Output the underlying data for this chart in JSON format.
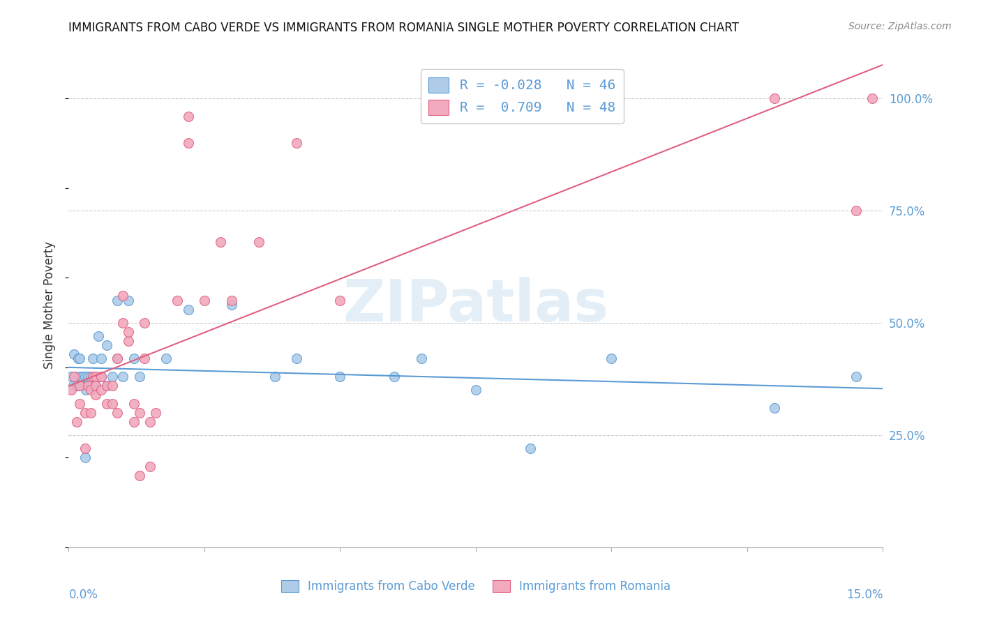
{
  "title": "IMMIGRANTS FROM CABO VERDE VS IMMIGRANTS FROM ROMANIA SINGLE MOTHER POVERTY CORRELATION CHART",
  "source": "Source: ZipAtlas.com",
  "ylabel": "Single Mother Poverty",
  "cabo_verde_color": "#aecce8",
  "romania_color": "#f2aabe",
  "cabo_verde_line_color": "#5b9bd5",
  "romania_line_color": "#e06080",
  "xlim": [
    0.0,
    0.15
  ],
  "ylim": [
    0.0,
    1.08
  ],
  "ytick_vals": [
    0.25,
    0.5,
    0.75,
    1.0
  ],
  "cabo_verde_x": [
    0.0005,
    0.0008,
    0.001,
    0.0012,
    0.0015,
    0.0018,
    0.002,
    0.002,
    0.0022,
    0.0025,
    0.003,
    0.003,
    0.003,
    0.0032,
    0.0035,
    0.004,
    0.004,
    0.0042,
    0.0045,
    0.005,
    0.005,
    0.0055,
    0.006,
    0.006,
    0.007,
    0.007,
    0.008,
    0.009,
    0.009,
    0.01,
    0.011,
    0.012,
    0.013,
    0.018,
    0.022,
    0.03,
    0.038,
    0.042,
    0.05,
    0.06,
    0.065,
    0.075,
    0.085,
    0.1,
    0.13,
    0.145
  ],
  "cabo_verde_y": [
    0.38,
    0.36,
    0.43,
    0.38,
    0.36,
    0.42,
    0.38,
    0.42,
    0.36,
    0.38,
    0.2,
    0.36,
    0.38,
    0.35,
    0.38,
    0.36,
    0.38,
    0.36,
    0.42,
    0.36,
    0.38,
    0.47,
    0.38,
    0.42,
    0.36,
    0.45,
    0.38,
    0.42,
    0.55,
    0.38,
    0.55,
    0.42,
    0.38,
    0.42,
    0.53,
    0.54,
    0.38,
    0.42,
    0.38,
    0.38,
    0.42,
    0.35,
    0.22,
    0.42,
    0.31,
    0.38
  ],
  "romania_x": [
    0.0005,
    0.001,
    0.0015,
    0.002,
    0.002,
    0.003,
    0.003,
    0.0035,
    0.004,
    0.004,
    0.0045,
    0.005,
    0.005,
    0.005,
    0.006,
    0.006,
    0.007,
    0.007,
    0.008,
    0.008,
    0.009,
    0.009,
    0.01,
    0.01,
    0.011,
    0.011,
    0.012,
    0.012,
    0.013,
    0.013,
    0.014,
    0.014,
    0.015,
    0.015,
    0.016,
    0.02,
    0.022,
    0.022,
    0.025,
    0.028,
    0.03,
    0.035,
    0.042,
    0.05,
    0.095,
    0.13,
    0.145,
    0.148
  ],
  "romania_y": [
    0.35,
    0.38,
    0.28,
    0.32,
    0.36,
    0.22,
    0.3,
    0.36,
    0.3,
    0.35,
    0.38,
    0.34,
    0.36,
    0.38,
    0.35,
    0.38,
    0.32,
    0.36,
    0.32,
    0.36,
    0.3,
    0.42,
    0.5,
    0.56,
    0.46,
    0.48,
    0.28,
    0.32,
    0.16,
    0.3,
    0.42,
    0.5,
    0.18,
    0.28,
    0.3,
    0.55,
    0.9,
    0.96,
    0.55,
    0.68,
    0.55,
    0.68,
    0.9,
    0.55,
    1.0,
    1.0,
    0.75,
    1.0
  ],
  "cabo_verde_R": -0.028,
  "cabo_verde_N": 46,
  "romania_R": 0.709,
  "romania_N": 48
}
